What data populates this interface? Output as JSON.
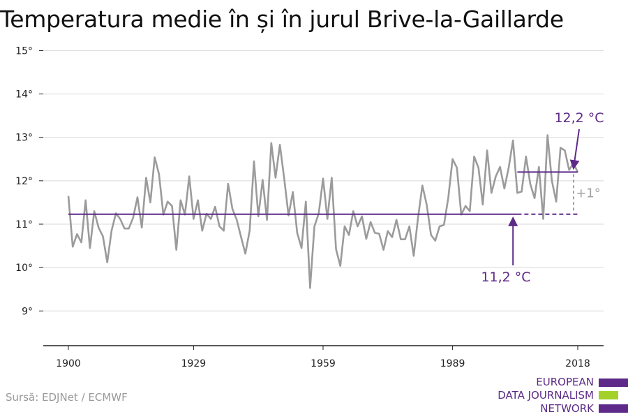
{
  "chart_data": {
    "type": "line",
    "title": "Temperatura medie în și în jurul Brive-la-Gaillarde",
    "x_ticks": [
      "1900",
      "1929",
      "1959",
      "1989",
      "2018"
    ],
    "y_ticks": [
      "9°",
      "10°",
      "11°",
      "12°",
      "13°",
      "14°",
      "15°"
    ],
    "xlim": [
      1900,
      2018
    ],
    "ylim": [
      8.2,
      15.2
    ],
    "grid": true,
    "series": [
      {
        "x": [
          1900,
          1901,
          1902,
          1903,
          1904,
          1905,
          1906,
          1907,
          1908,
          1909,
          1910,
          1911,
          1912,
          1913,
          1914,
          1915,
          1916,
          1917,
          1918,
          1919,
          1920,
          1921,
          1922,
          1923,
          1924,
          1925,
          1926,
          1927,
          1928,
          1929,
          1930,
          1931,
          1932,
          1933,
          1934,
          1935,
          1936,
          1937,
          1938,
          1939,
          1940,
          1941,
          1942,
          1943,
          1944,
          1945,
          1946,
          1947,
          1948,
          1949,
          1950,
          1951,
          1952,
          1953,
          1954,
          1955,
          1956,
          1957,
          1958,
          1959,
          1960,
          1961,
          1962,
          1963,
          1964,
          1965,
          1966,
          1967,
          1968,
          1969,
          1970,
          1971,
          1972,
          1973,
          1974,
          1975,
          1976,
          1977,
          1978,
          1979,
          1980,
          1981,
          1982,
          1983,
          1984,
          1985,
          1986,
          1987,
          1988,
          1989,
          1990,
          1991,
          1992,
          1993,
          1994,
          1995,
          1996,
          1997,
          1998,
          1999,
          2000,
          2001,
          2002,
          2003,
          2004,
          2005,
          2006,
          2007,
          2008,
          2009,
          2010,
          2011,
          2012,
          2013,
          2014,
          2015,
          2016,
          2017,
          2018
        ],
        "values": [
          11.65,
          10.48,
          10.77,
          10.58,
          11.55,
          10.45,
          11.3,
          10.92,
          10.72,
          10.12,
          10.85,
          11.25,
          11.12,
          10.9,
          10.9,
          11.15,
          11.62,
          10.92,
          12.07,
          11.5,
          12.54,
          12.15,
          11.22,
          11.52,
          11.42,
          10.41,
          11.55,
          11.22,
          12.1,
          11.12,
          11.55,
          10.85,
          11.24,
          11.12,
          11.4,
          10.95,
          10.85,
          11.93,
          11.35,
          11.1,
          10.7,
          10.32,
          10.85,
          12.45,
          11.18,
          12.02,
          11.1,
          12.87,
          12.07,
          12.83,
          12.05,
          11.2,
          11.74,
          10.8,
          10.45,
          11.52,
          9.53,
          10.95,
          11.25,
          12.05,
          11.12,
          12.07,
          10.42,
          10.04,
          10.95,
          10.75,
          11.3,
          10.95,
          11.18,
          10.66,
          11.05,
          10.8,
          10.78,
          10.41,
          10.84,
          10.7,
          11.1,
          10.65,
          10.65,
          10.95,
          10.27,
          11.15,
          11.89,
          11.45,
          10.75,
          10.62,
          10.95,
          10.98,
          11.6,
          12.5,
          12.3,
          11.22,
          11.42,
          11.3,
          12.56,
          12.3,
          11.45,
          12.7,
          11.72,
          12.1,
          12.32,
          11.82,
          12.3,
          12.93,
          11.72,
          11.75,
          12.56,
          11.93,
          11.6,
          12.32,
          11.12,
          13.05,
          12.0,
          11.52,
          12.76,
          12.7,
          12.25,
          12.4,
          12.2
        ]
      }
    ],
    "reference_lines": [
      {
        "label": "11,2 °C",
        "value": 11.23
      },
      {
        "label": "12,2 °C",
        "value": 12.2
      }
    ],
    "difference_label": "+1°",
    "colors": {
      "series": "#9b9b9b",
      "reference": "#5e2a89",
      "difference": "#a0a0a0",
      "grid": "#d9d9d9",
      "axis": "#222222"
    }
  },
  "source": "Sursă: EDJNet / ECMWF",
  "logo": {
    "lines": [
      "EUROPEAN",
      "DATA JOURNALISM",
      "NETWORK"
    ],
    "bar_colors": [
      "#5e2a89",
      "#a3d12a",
      "#5e2a89"
    ]
  }
}
